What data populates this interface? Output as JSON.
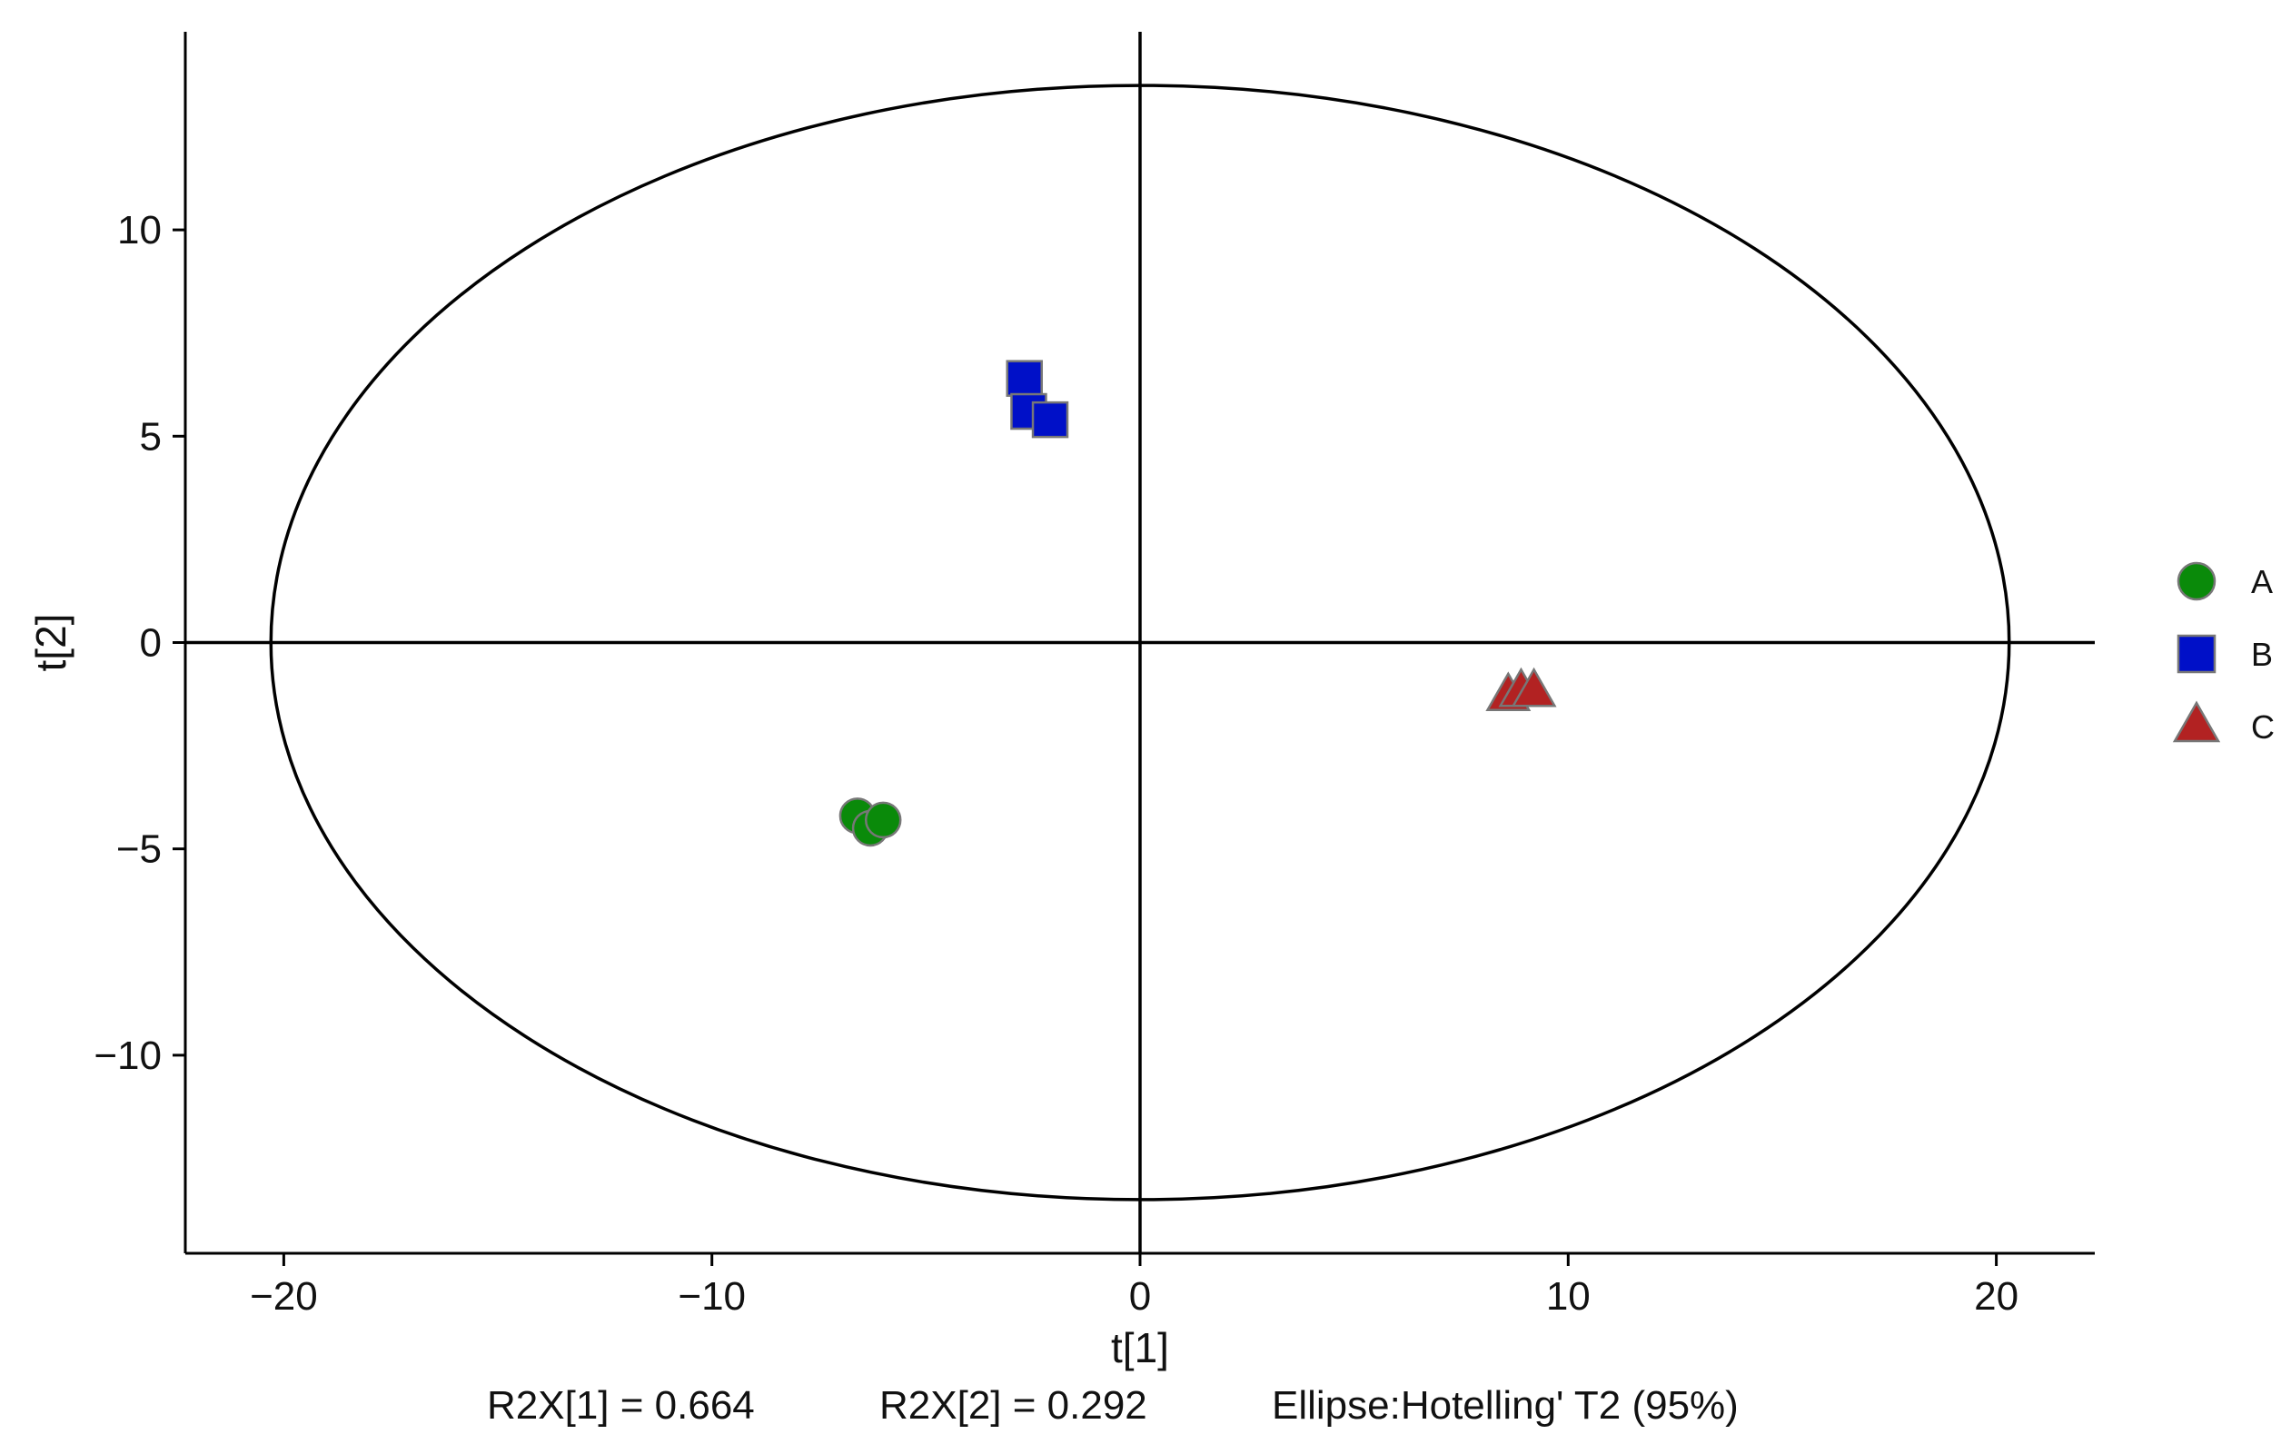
{
  "chart_data": {
    "type": "scatter",
    "xlabel": "t[1]",
    "ylabel": "t[2]",
    "xlim": [
      -22.3,
      22.3
    ],
    "ylim": [
      -14.8,
      14.8
    ],
    "xticks": [
      -20,
      -10,
      0,
      10,
      20
    ],
    "yticks": [
      -10,
      -5,
      0,
      5,
      10
    ],
    "xtick_labels": [
      "−20",
      "−10",
      "0",
      "10",
      "20"
    ],
    "ytick_labels": [
      "−10",
      "−5",
      "0",
      "5",
      "10"
    ],
    "grid": false,
    "legend": "right",
    "ellipse": {
      "a": 20.3,
      "b": 13.5
    },
    "caption": {
      "r2x1": "R2X[1]  =  0.664",
      "r2x2": "R2X[2]  =  0.292",
      "ellipse": "Ellipse:Hotelling' T2 (95%)"
    },
    "series": [
      {
        "name": "A",
        "marker": "circle",
        "color": "#0a8a0a",
        "points": [
          [
            -6.6,
            -4.2
          ],
          [
            -6.3,
            -4.5
          ],
          [
            -6.0,
            -4.3
          ]
        ]
      },
      {
        "name": "B",
        "marker": "square",
        "color": "#0010c8",
        "points": [
          [
            -2.7,
            6.4
          ],
          [
            -2.6,
            5.6
          ],
          [
            -2.1,
            5.4
          ]
        ]
      },
      {
        "name": "C",
        "marker": "triangle",
        "color": "#b22222",
        "points": [
          [
            8.6,
            -1.3
          ],
          [
            8.9,
            -1.2
          ],
          [
            9.2,
            -1.2
          ]
        ]
      }
    ]
  }
}
